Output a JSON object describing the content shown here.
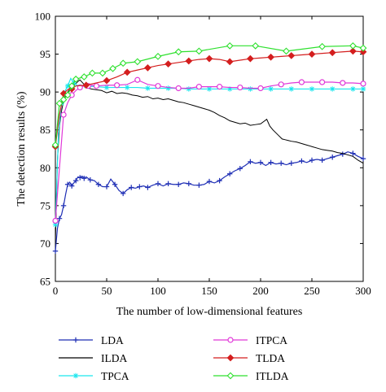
{
  "chart_data": {
    "type": "line",
    "xlabel": "The number of low-dimensional features",
    "ylabel": "The detection results (%)",
    "xlim": [
      0,
      300
    ],
    "ylim": [
      65,
      100
    ],
    "xticks": [
      "0",
      "50",
      "100",
      "150",
      "200",
      "250",
      "300"
    ],
    "yticks": [
      "65",
      "70",
      "75",
      "80",
      "85",
      "90",
      "95",
      "100"
    ],
    "grid": false,
    "legend_position": "below",
    "series": [
      {
        "name": "LDA",
        "color": "#1f2fb5",
        "marker": "plus",
        "marker_every": 2,
        "x": [
          0,
          2,
          4,
          6,
          8,
          10,
          12,
          14,
          16,
          18,
          20,
          22,
          24,
          26,
          28,
          30,
          34,
          38,
          42,
          46,
          50,
          54,
          58,
          62,
          66,
          70,
          74,
          78,
          82,
          86,
          90,
          95,
          100,
          105,
          110,
          115,
          120,
          125,
          130,
          135,
          140,
          145,
          150,
          155,
          160,
          165,
          170,
          175,
          180,
          185,
          190,
          195,
          200,
          205,
          210,
          215,
          220,
          225,
          230,
          235,
          240,
          245,
          250,
          255,
          260,
          265,
          270,
          275,
          280,
          285,
          290,
          295,
          300
        ],
        "y": [
          69.0,
          72.0,
          73.3,
          73.8,
          75.0,
          76.5,
          77.8,
          78.1,
          77.6,
          78.0,
          78.3,
          78.8,
          78.7,
          78.9,
          78.6,
          78.8,
          78.4,
          78.3,
          77.8,
          77.5,
          77.5,
          78.5,
          77.8,
          77.0,
          76.6,
          77.1,
          77.4,
          77.3,
          77.5,
          77.6,
          77.4,
          77.7,
          77.9,
          77.6,
          77.9,
          77.8,
          77.8,
          78.0,
          77.9,
          77.7,
          77.7,
          77.8,
          78.2,
          78.0,
          78.3,
          78.8,
          79.2,
          79.6,
          79.9,
          80.3,
          80.8,
          80.6,
          80.7,
          80.3,
          80.7,
          80.5,
          80.6,
          80.4,
          80.6,
          80.7,
          80.9,
          80.7,
          81.0,
          81.1,
          81.0,
          81.2,
          81.4,
          81.6,
          81.8,
          82.1,
          81.9,
          81.5,
          81.2
        ]
      },
      {
        "name": "ILDA",
        "color": "#000000",
        "marker": "none",
        "x": [
          0,
          2,
          4,
          6,
          8,
          10,
          12,
          14,
          16,
          18,
          20,
          22,
          24,
          26,
          28,
          30,
          35,
          40,
          45,
          50,
          55,
          60,
          65,
          70,
          75,
          80,
          85,
          90,
          95,
          100,
          105,
          110,
          115,
          120,
          125,
          130,
          135,
          140,
          145,
          150,
          155,
          160,
          165,
          170,
          175,
          180,
          185,
          190,
          195,
          200,
          203,
          206,
          209,
          212,
          215,
          218,
          221,
          224,
          227,
          230,
          235,
          240,
          245,
          250,
          255,
          260,
          265,
          270,
          275,
          280,
          285,
          290,
          295,
          300
        ],
        "y": [
          70.0,
          81.0,
          85.5,
          87.5,
          88.8,
          89.6,
          90.0,
          90.3,
          90.6,
          90.9,
          91.1,
          91.4,
          91.6,
          91.3,
          91.0,
          90.6,
          90.4,
          90.3,
          90.2,
          89.9,
          90.1,
          89.8,
          89.9,
          89.8,
          89.6,
          89.5,
          89.3,
          89.4,
          89.1,
          89.2,
          89.0,
          89.1,
          88.9,
          88.7,
          88.6,
          88.4,
          88.2,
          88.0,
          87.8,
          87.6,
          87.3,
          86.9,
          86.6,
          86.2,
          86.0,
          85.8,
          85.9,
          85.6,
          85.7,
          85.8,
          86.1,
          86.4,
          85.5,
          85.0,
          84.6,
          84.2,
          83.8,
          83.7,
          83.6,
          83.5,
          83.4,
          83.2,
          83.0,
          82.8,
          82.6,
          82.4,
          82.3,
          82.2,
          82.0,
          81.9,
          81.7,
          81.5,
          81.0,
          80.6
        ]
      },
      {
        "name": "TPCA",
        "color": "#1ce6ee",
        "marker": "star",
        "marker_every": 2,
        "x": [
          0,
          3,
          6,
          9,
          12,
          15,
          18,
          21,
          24,
          27,
          30,
          40,
          50,
          60,
          70,
          80,
          90,
          100,
          110,
          120,
          130,
          140,
          150,
          160,
          170,
          180,
          190,
          200,
          210,
          220,
          230,
          240,
          250,
          260,
          270,
          280,
          290,
          300
        ],
        "y": [
          72.5,
          84.5,
          88.5,
          90.0,
          90.8,
          91.8,
          91.2,
          90.9,
          90.7,
          90.8,
          90.8,
          90.7,
          90.6,
          90.6,
          90.6,
          90.6,
          90.5,
          90.5,
          90.5,
          90.5,
          90.4,
          90.4,
          90.4,
          90.4,
          90.4,
          90.4,
          90.4,
          90.4,
          90.4,
          90.4,
          90.4,
          90.4,
          90.4,
          90.4,
          90.4,
          90.4,
          90.4,
          90.4
        ]
      },
      {
        "name": "ITPCA",
        "color": "#e038d8",
        "marker": "circle",
        "marker_every": 2,
        "x": [
          0,
          4,
          8,
          12,
          16,
          20,
          24,
          28,
          32,
          36,
          40,
          50,
          60,
          70,
          80,
          90,
          100,
          110,
          120,
          130,
          140,
          150,
          160,
          170,
          180,
          190,
          200,
          210,
          220,
          230,
          240,
          250,
          260,
          270,
          280,
          290,
          300
        ],
        "y": [
          73.0,
          80.0,
          87.0,
          88.6,
          89.6,
          90.2,
          90.6,
          90.8,
          90.8,
          90.9,
          90.8,
          90.9,
          90.9,
          91.0,
          91.6,
          91.0,
          90.8,
          90.6,
          90.5,
          90.5,
          90.7,
          90.7,
          90.7,
          90.6,
          90.6,
          90.5,
          90.5,
          90.8,
          91.0,
          91.2,
          91.3,
          91.3,
          91.3,
          91.3,
          91.2,
          91.2,
          91.1
        ]
      },
      {
        "name": "TLDA",
        "color": "#d41e1e",
        "marker": "diamond",
        "marker_every": 2,
        "x": [
          0,
          4,
          8,
          12,
          16,
          20,
          30,
          40,
          50,
          60,
          70,
          80,
          90,
          100,
          110,
          120,
          130,
          140,
          150,
          160,
          170,
          180,
          190,
          200,
          210,
          220,
          230,
          240,
          250,
          260,
          270,
          280,
          290,
          300
        ],
        "y": [
          82.8,
          87.0,
          89.8,
          90.3,
          90.4,
          90.8,
          90.9,
          91.2,
          91.5,
          92.0,
          92.6,
          92.9,
          93.2,
          93.5,
          93.7,
          93.9,
          94.1,
          94.3,
          94.4,
          94.3,
          94.0,
          94.2,
          94.4,
          94.5,
          94.6,
          94.7,
          94.8,
          94.9,
          95.0,
          95.1,
          95.2,
          95.3,
          95.4,
          95.3
        ]
      },
      {
        "name": "ITLDA",
        "color": "#2ee02e",
        "marker": "diamond",
        "marker_every": 1,
        "x": [
          0,
          4,
          8,
          12,
          16,
          20,
          28,
          36,
          46,
          56,
          66,
          80,
          100,
          120,
          140,
          170,
          195,
          225,
          260,
          290,
          300
        ],
        "y": [
          83.0,
          88.5,
          89.0,
          89.6,
          90.8,
          91.7,
          92.0,
          92.5,
          92.5,
          93.1,
          93.8,
          94.0,
          94.7,
          95.3,
          95.4,
          96.1,
          96.1,
          95.4,
          96.0,
          96.1,
          95.8
        ]
      }
    ]
  }
}
